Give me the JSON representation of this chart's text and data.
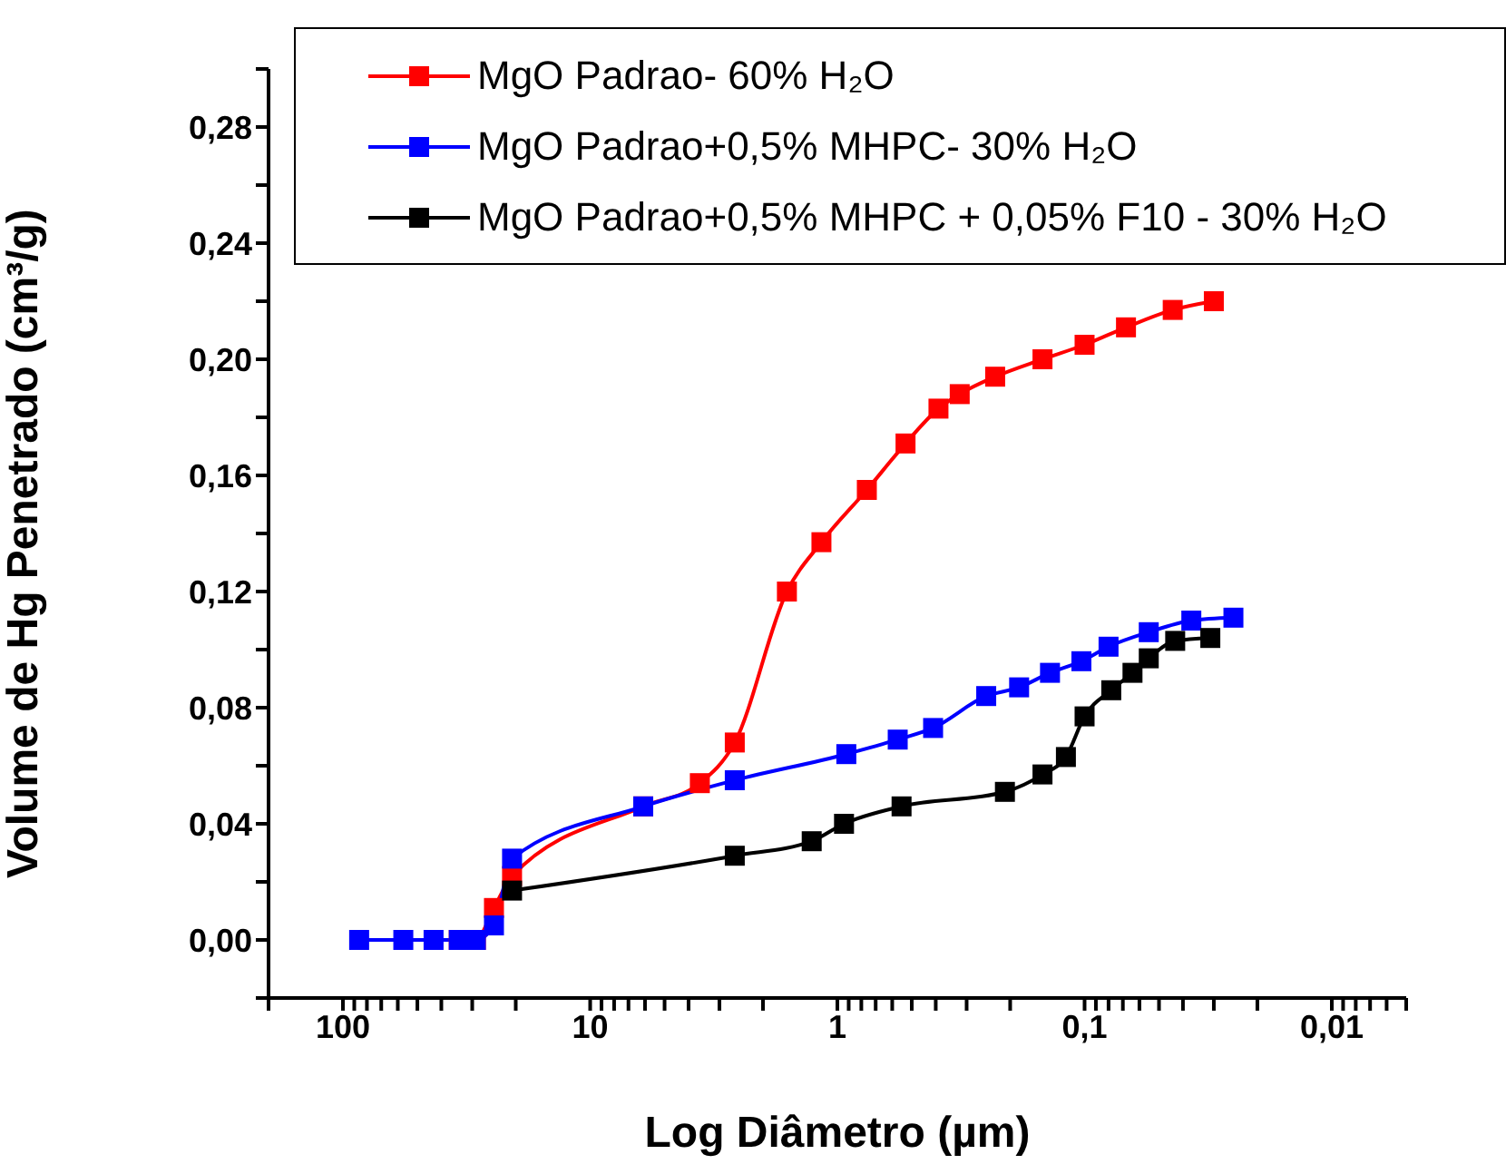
{
  "chart_data": {
    "type": "line",
    "xlabel": "Log Diâmetro (µm)",
    "ylabel": "Volume de Hg Penetrado (cm³/g)",
    "log": "x",
    "marker": "square",
    "line_style": "solid",
    "legend": "top right",
    "grid": false,
    "xlim": [
      200,
      0.005
    ],
    "xticks": [
      {
        "value": 100,
        "label": "100"
      },
      {
        "value": 10,
        "label": "10"
      },
      {
        "value": 1,
        "label": "1"
      },
      {
        "value": 0.1,
        "label": "0,1"
      },
      {
        "value": 0.01,
        "label": "0,01"
      },
      {
        "value": 200,
        "label": null
      },
      {
        "value": 90,
        "label": null
      },
      {
        "value": 80,
        "label": null
      },
      {
        "value": 70,
        "label": null
      },
      {
        "value": 60,
        "label": null
      },
      {
        "value": 50,
        "label": null
      },
      {
        "value": 40,
        "label": null
      },
      {
        "value": 30,
        "label": null
      },
      {
        "value": 20,
        "label": null
      },
      {
        "value": 9,
        "label": null
      },
      {
        "value": 8,
        "label": null
      },
      {
        "value": 7,
        "label": null
      },
      {
        "value": 6,
        "label": null
      },
      {
        "value": 5,
        "label": null
      },
      {
        "value": 4,
        "label": null
      },
      {
        "value": 3,
        "label": null
      },
      {
        "value": 2,
        "label": null
      },
      {
        "value": 0.9,
        "label": null
      },
      {
        "value": 0.8,
        "label": null
      },
      {
        "value": 0.7,
        "label": null
      },
      {
        "value": 0.6,
        "label": null
      },
      {
        "value": 0.5,
        "label": null
      },
      {
        "value": 0.4,
        "label": null
      },
      {
        "value": 0.3,
        "label": null
      },
      {
        "value": 0.2,
        "label": null
      },
      {
        "value": 0.09,
        "label": null
      },
      {
        "value": 0.08,
        "label": null
      },
      {
        "value": 0.07,
        "label": null
      },
      {
        "value": 0.06,
        "label": null
      },
      {
        "value": 0.05,
        "label": null
      },
      {
        "value": 0.04,
        "label": null
      },
      {
        "value": 0.03,
        "label": null
      },
      {
        "value": 0.02,
        "label": null
      },
      {
        "value": 0.009,
        "label": null
      },
      {
        "value": 0.008,
        "label": null
      },
      {
        "value": 0.007,
        "label": null
      },
      {
        "value": 0.006,
        "label": null
      },
      {
        "value": 0.005,
        "label": null
      }
    ],
    "ylim": [
      -0.02,
      0.3
    ],
    "yticks": [
      {
        "value": 0,
        "label": "0,00"
      },
      {
        "value": 0.04,
        "label": "0,04"
      },
      {
        "value": 0.08,
        "label": "0,08"
      },
      {
        "value": 0.12,
        "label": "0,12"
      },
      {
        "value": 0.16,
        "label": "0,16"
      },
      {
        "value": 0.2,
        "label": "0,20"
      },
      {
        "value": 0.24,
        "label": "0,24"
      },
      {
        "value": 0.28,
        "label": "0,28"
      },
      {
        "value": -0.02,
        "label": null
      },
      {
        "value": 0.02,
        "label": null
      },
      {
        "value": 0.06,
        "label": null
      },
      {
        "value": 0.1,
        "label": null
      },
      {
        "value": 0.14,
        "label": null
      },
      {
        "value": 0.18,
        "label": null
      },
      {
        "value": 0.22,
        "label": null
      },
      {
        "value": 0.26,
        "label": null
      },
      {
        "value": 0.3,
        "label": null
      }
    ],
    "series": [
      {
        "name": "MgO Padrao- 60% H₂O",
        "color": "#ff0000",
        "x": [
          34,
          29,
          24.5,
          20.7,
          6.1,
          3.6,
          2.6,
          1.6,
          1.16,
          0.76,
          0.53,
          0.39,
          0.32,
          0.23,
          0.148,
          0.1,
          0.068,
          0.044,
          0.03
        ],
        "values": [
          0,
          0,
          0.011,
          0.022,
          0.046,
          0.054,
          0.068,
          0.12,
          0.137,
          0.155,
          0.171,
          0.183,
          0.188,
          0.194,
          0.2,
          0.205,
          0.211,
          0.217,
          0.22
        ]
      },
      {
        "name": "MgO Padrao+0,5% MHPC- 30% H₂O",
        "color": "#0000ff",
        "x": [
          86,
          57,
          43,
          34,
          29,
          24.5,
          20.7,
          6.1,
          2.6,
          0.92,
          0.57,
          0.41,
          0.25,
          0.184,
          0.138,
          0.103,
          0.08,
          0.055,
          0.037,
          0.025
        ],
        "values": [
          0,
          0,
          0,
          0,
          0,
          0.005,
          0.028,
          0.046,
          0.055,
          0.064,
          0.069,
          0.073,
          0.084,
          0.087,
          0.092,
          0.096,
          0.101,
          0.106,
          0.11,
          0.111
        ]
      },
      {
        "name": "MgO Padrao+0,5% MHPC + 0,05% F10 - 30% H₂O",
        "color": "#000000",
        "x": [
          20.7,
          2.6,
          1.27,
          0.94,
          0.55,
          0.21,
          0.148,
          0.119,
          0.1,
          0.078,
          0.064,
          0.055,
          0.043,
          0.031
        ],
        "values": [
          0.017,
          0.029,
          0.034,
          0.04,
          0.046,
          0.051,
          0.057,
          0.063,
          0.077,
          0.086,
          0.092,
          0.097,
          0.103,
          0.104
        ]
      }
    ]
  }
}
